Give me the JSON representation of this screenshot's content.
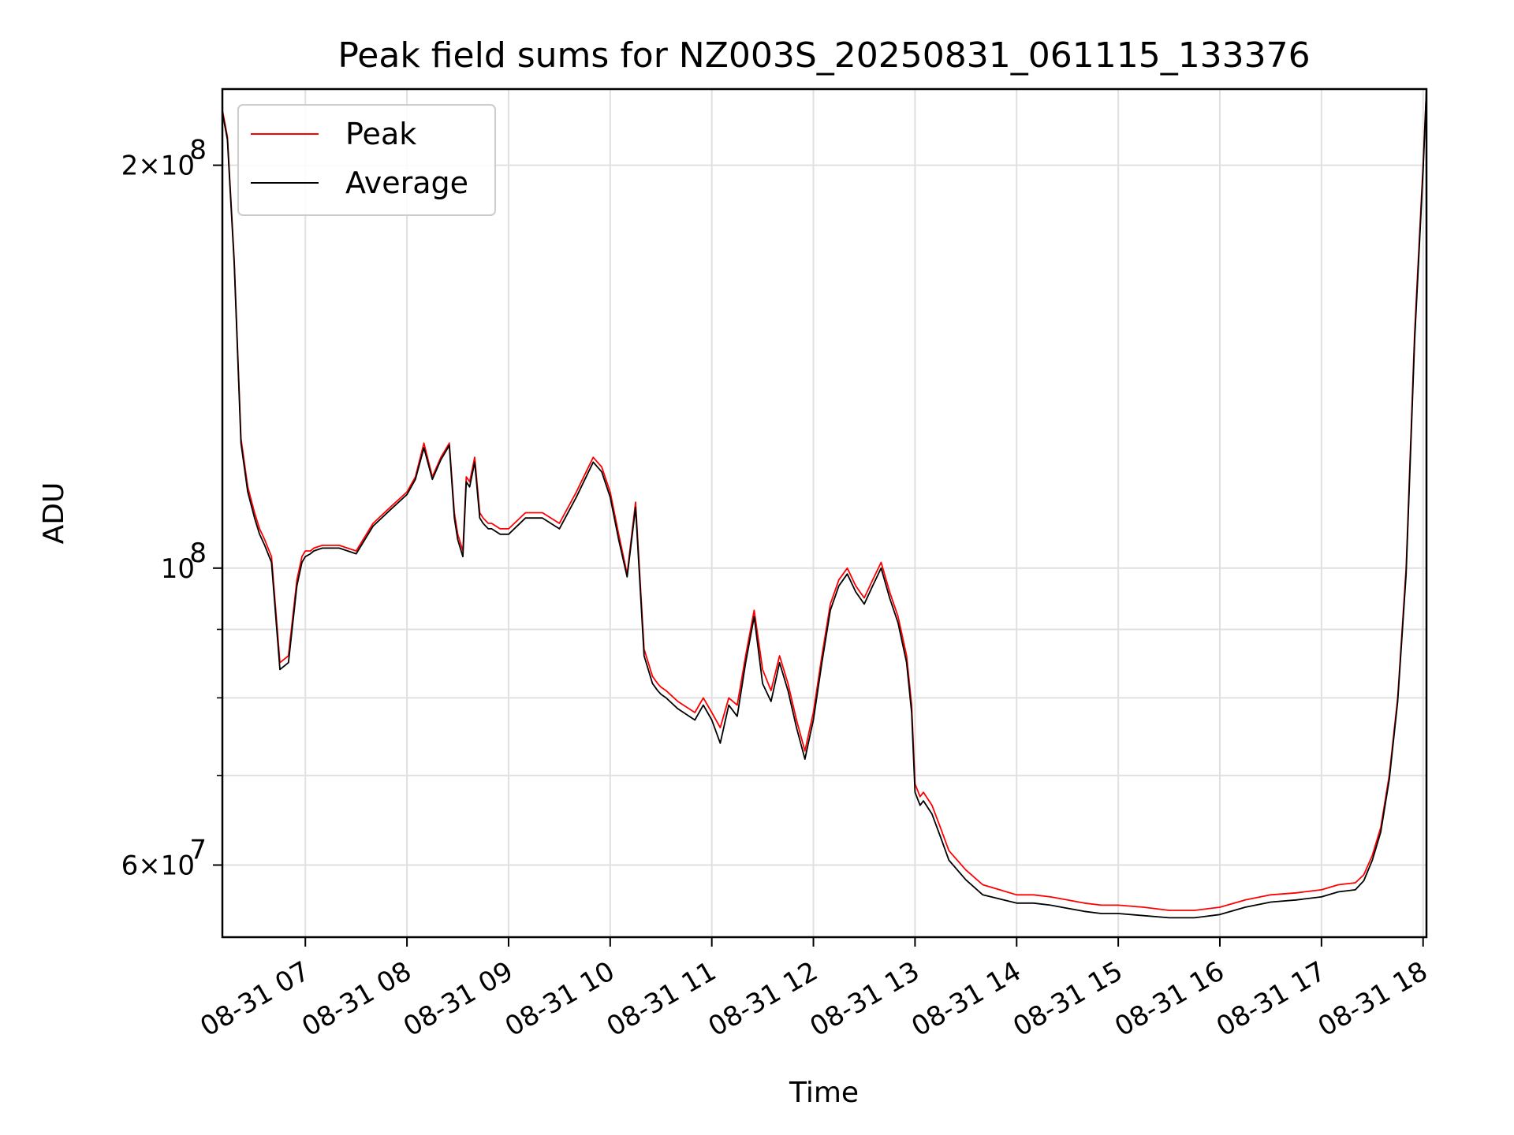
{
  "chart_data": {
    "type": "line",
    "title": "Peak field sums for NZ003S_20250831_061115_133376",
    "xlabel": "Time",
    "ylabel": "ADU",
    "y_scale": "log",
    "ylim": [
      53000000,
      228000000
    ],
    "xlim": [
      "08-31 06:11",
      "08-31 18:02"
    ],
    "x_ticks": [
      "08-31 07",
      "08-31 08",
      "08-31 09",
      "08-31 10",
      "08-31 11",
      "08-31 12",
      "08-31 13",
      "08-31 14",
      "08-31 15",
      "08-31 16",
      "08-31 17",
      "08-31 18"
    ],
    "y_tick_labels": [
      {
        "value": 200000000,
        "mantissa": "2",
        "exponent": "8"
      },
      {
        "value": 100000000,
        "mantissa": "",
        "exponent": "8"
      },
      {
        "value": 60000000,
        "mantissa": "6",
        "exponent": "7"
      }
    ],
    "y_minor_ticks": [
      70000000,
      80000000,
      90000000
    ],
    "grid": true,
    "legend": {
      "position": "top-left",
      "entries": [
        "Peak",
        "Average"
      ]
    },
    "series": [
      {
        "name": "Peak",
        "color": "#ff0000",
        "x": [
          "06:11",
          "06:14",
          "06:18",
          "06:22",
          "06:26",
          "06:30",
          "06:33",
          "06:36",
          "06:40",
          "06:45",
          "06:50",
          "06:55",
          "06:58",
          "07:00",
          "07:03",
          "07:05",
          "07:10",
          "07:20",
          "07:30",
          "07:40",
          "07:50",
          "08:00",
          "08:05",
          "08:10",
          "08:15",
          "08:20",
          "08:25",
          "08:28",
          "08:30",
          "08:33",
          "08:35",
          "08:37",
          "08:40",
          "08:43",
          "08:45",
          "08:48",
          "08:50",
          "08:55",
          "09:00",
          "09:10",
          "09:20",
          "09:30",
          "09:40",
          "09:50",
          "09:55",
          "10:00",
          "10:05",
          "10:10",
          "10:15",
          "10:20",
          "10:25",
          "10:28",
          "10:30",
          "10:33",
          "10:40",
          "10:50",
          "10:55",
          "11:00",
          "11:05",
          "11:10",
          "11:15",
          "11:20",
          "11:25",
          "11:30",
          "11:35",
          "11:40",
          "11:45",
          "11:50",
          "11:55",
          "11:58",
          "12:00",
          "12:05",
          "12:10",
          "12:15",
          "12:20",
          "12:25",
          "12:30",
          "12:35",
          "12:40",
          "12:45",
          "12:50",
          "12:55",
          "12:58",
          "13:00",
          "13:03",
          "13:05",
          "13:10",
          "13:15",
          "13:20",
          "13:30",
          "13:40",
          "13:50",
          "14:00",
          "14:10",
          "14:20",
          "14:30",
          "14:40",
          "14:50",
          "15:00",
          "15:15",
          "15:30",
          "15:45",
          "16:00",
          "16:15",
          "16:30",
          "16:45",
          "17:00",
          "17:10",
          "17:20",
          "17:25",
          "17:30",
          "17:35",
          "17:40",
          "17:45",
          "17:50",
          "17:55",
          "18:00",
          "18:02"
        ],
        "y": [
          220000000,
          210000000,
          170000000,
          125000000,
          115000000,
          110000000,
          107000000,
          105000000,
          102000000,
          85000000,
          86000000,
          98000000,
          102000000,
          103000000,
          103000000,
          103500000,
          104000000,
          104000000,
          103000000,
          108000000,
          111000000,
          114000000,
          117000000,
          124000000,
          117000000,
          121000000,
          124000000,
          110000000,
          106000000,
          103000000,
          117000000,
          116000000,
          121000000,
          110000000,
          109000000,
          108000000,
          108000000,
          107000000,
          107000000,
          110000000,
          110000000,
          108000000,
          114000000,
          121000000,
          119000000,
          114000000,
          106000000,
          99000000,
          112000000,
          87000000,
          83000000,
          82000000,
          81500000,
          81000000,
          79500000,
          78000000,
          80000000,
          78000000,
          76000000,
          80000000,
          79000000,
          86000000,
          93000000,
          84000000,
          81000000,
          86000000,
          82000000,
          77000000,
          73000000,
          76000000,
          78000000,
          86000000,
          94000000,
          98000000,
          100000000,
          97000000,
          95000000,
          98000000,
          101000000,
          96000000,
          92000000,
          86000000,
          79000000,
          69000000,
          67500000,
          68000000,
          66500000,
          64000000,
          61500000,
          59500000,
          58000000,
          57500000,
          57000000,
          57000000,
          56800000,
          56500000,
          56200000,
          56000000,
          56000000,
          55800000,
          55500000,
          55500000,
          55800000,
          56500000,
          57000000,
          57200000,
          57500000,
          58000000,
          58200000,
          59000000,
          61000000,
          64000000,
          70000000,
          80000000,
          100000000,
          150000000,
          200000000,
          228000000
        ]
      },
      {
        "name": "Average",
        "color": "#000000",
        "x": [
          "06:11",
          "06:14",
          "06:18",
          "06:22",
          "06:26",
          "06:30",
          "06:33",
          "06:36",
          "06:40",
          "06:45",
          "06:50",
          "06:55",
          "06:58",
          "07:00",
          "07:03",
          "07:05",
          "07:10",
          "07:20",
          "07:30",
          "07:40",
          "07:50",
          "08:00",
          "08:05",
          "08:10",
          "08:15",
          "08:20",
          "08:25",
          "08:28",
          "08:30",
          "08:33",
          "08:35",
          "08:37",
          "08:40",
          "08:43",
          "08:45",
          "08:48",
          "08:50",
          "08:55",
          "09:00",
          "09:10",
          "09:20",
          "09:30",
          "09:40",
          "09:50",
          "09:55",
          "10:00",
          "10:05",
          "10:10",
          "10:15",
          "10:20",
          "10:25",
          "10:28",
          "10:30",
          "10:33",
          "10:40",
          "10:50",
          "10:55",
          "11:00",
          "11:05",
          "11:10",
          "11:15",
          "11:20",
          "11:25",
          "11:30",
          "11:35",
          "11:40",
          "11:45",
          "11:50",
          "11:55",
          "11:58",
          "12:00",
          "12:05",
          "12:10",
          "12:15",
          "12:20",
          "12:25",
          "12:30",
          "12:35",
          "12:40",
          "12:45",
          "12:50",
          "12:55",
          "12:58",
          "13:00",
          "13:03",
          "13:05",
          "13:10",
          "13:15",
          "13:20",
          "13:30",
          "13:40",
          "13:50",
          "14:00",
          "14:10",
          "14:20",
          "14:30",
          "14:40",
          "14:50",
          "15:00",
          "15:15",
          "15:30",
          "15:45",
          "16:00",
          "16:15",
          "16:30",
          "16:45",
          "17:00",
          "17:10",
          "17:20",
          "17:25",
          "17:30",
          "17:35",
          "17:40",
          "17:45",
          "17:50",
          "17:55",
          "18:00",
          "18:02"
        ],
        "y": [
          219000000,
          209000000,
          169000000,
          124000000,
          114000000,
          109000000,
          106000000,
          104000000,
          101000000,
          84000000,
          85000000,
          97000000,
          101000000,
          102000000,
          102500000,
          103000000,
          103500000,
          103500000,
          102500000,
          107500000,
          110500000,
          113500000,
          116500000,
          123000000,
          116500000,
          120500000,
          123500000,
          109000000,
          105000000,
          102000000,
          116000000,
          115000000,
          120000000,
          109000000,
          108000000,
          107000000,
          107000000,
          106000000,
          106000000,
          109000000,
          109000000,
          107000000,
          113000000,
          120000000,
          118000000,
          113000000,
          105000000,
          98500000,
          111000000,
          86000000,
          82000000,
          81000000,
          80500000,
          80000000,
          78500000,
          77000000,
          79000000,
          77000000,
          74000000,
          79000000,
          77500000,
          85000000,
          92000000,
          82000000,
          79500000,
          85000000,
          81000000,
          76000000,
          72000000,
          75000000,
          77000000,
          85000000,
          93000000,
          97000000,
          99000000,
          96000000,
          94000000,
          97000000,
          100000000,
          95000000,
          91000000,
          85000000,
          78000000,
          68000000,
          66500000,
          67000000,
          65500000,
          63000000,
          60500000,
          58500000,
          57000000,
          56600000,
          56200000,
          56200000,
          56000000,
          55700000,
          55400000,
          55200000,
          55200000,
          55000000,
          54800000,
          54800000,
          55100000,
          55800000,
          56300000,
          56500000,
          56800000,
          57300000,
          57500000,
          58400000,
          60500000,
          63500000,
          69500000,
          79500000,
          99000000,
          148000000,
          198000000,
          228000000
        ]
      }
    ]
  }
}
